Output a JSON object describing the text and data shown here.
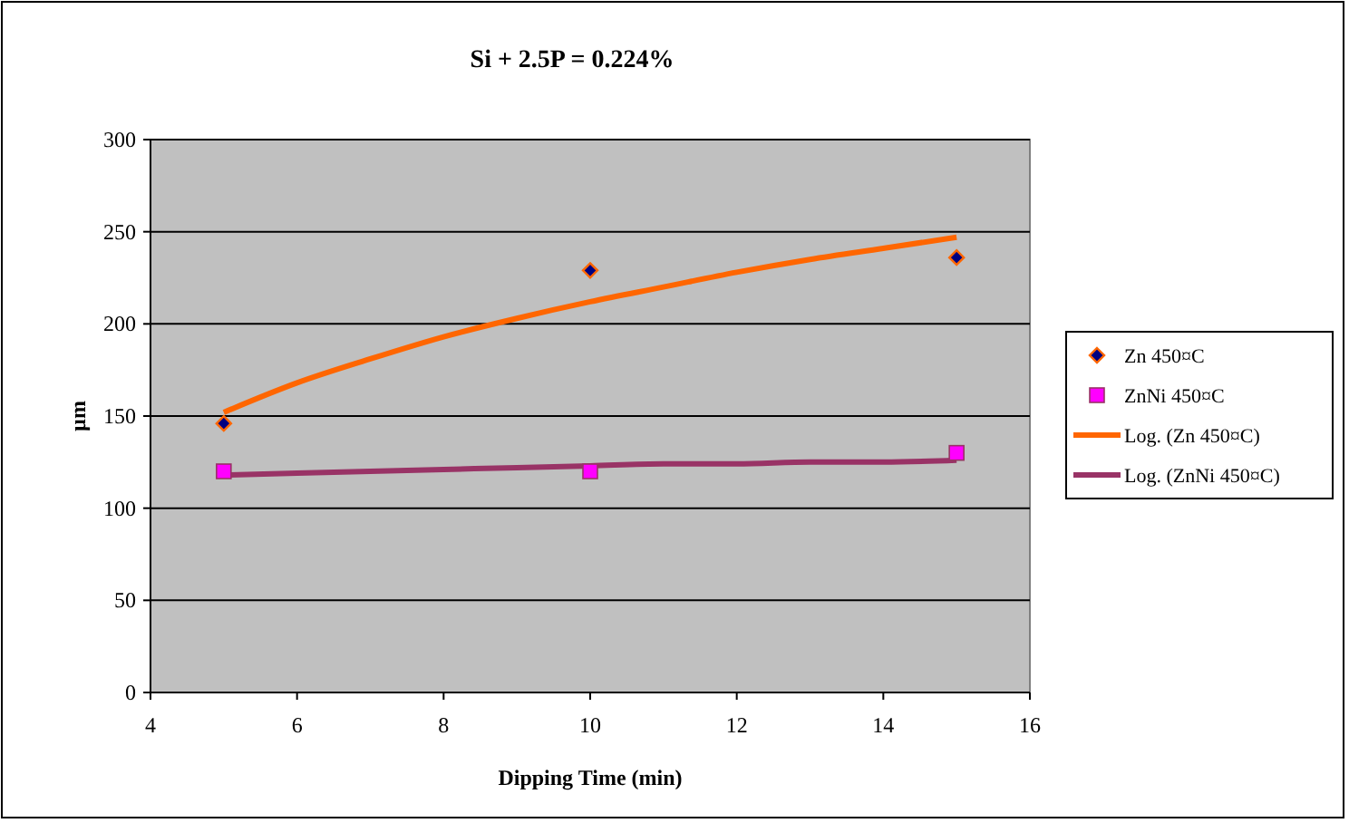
{
  "chart_data": {
    "type": "scatter",
    "title": "Si + 2.5P = 0.224%",
    "xlabel": "Dipping Time (min)",
    "ylabel": "µm",
    "xlim": [
      4,
      16
    ],
    "xticks": [
      4,
      6,
      8,
      10,
      12,
      14,
      16
    ],
    "ylim": [
      0,
      300
    ],
    "yticks": [
      0,
      50,
      100,
      150,
      200,
      250,
      300
    ],
    "grid": "y",
    "legend": "right",
    "series": [
      {
        "name": "Zn 450¤C",
        "marker": "diamond",
        "color": "#000080",
        "x": [
          5,
          10,
          15
        ],
        "values": [
          146,
          229,
          236
        ]
      },
      {
        "name": "ZnNi 450¤C",
        "marker": "square",
        "color": "#ff00ff",
        "x": [
          5,
          10,
          15
        ],
        "values": [
          120,
          120,
          130
        ]
      },
      {
        "name": "Log. (Zn 450¤C)",
        "type": "line",
        "color": "#ff6600",
        "x": [
          5,
          6,
          7,
          8,
          9,
          10,
          11,
          12,
          13,
          14,
          15
        ],
        "values": [
          152,
          168,
          181,
          193,
          203,
          212,
          220,
          228,
          235,
          241,
          247
        ]
      },
      {
        "name": "Log. (ZnNi 450¤C)",
        "type": "line",
        "color": "#993366",
        "x": [
          5,
          6,
          7,
          8,
          9,
          10,
          11,
          12,
          13,
          14,
          15
        ],
        "values": [
          118,
          119,
          120,
          121,
          122,
          123,
          124,
          124,
          125,
          125,
          126
        ]
      }
    ]
  }
}
